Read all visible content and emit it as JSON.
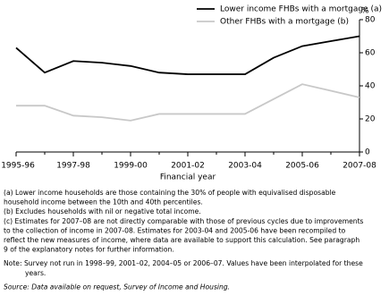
{
  "chart_data": {
    "type": "line",
    "x_label": "Financial year",
    "y_unit": "%",
    "categories": [
      "1995-96",
      null,
      "1997-98",
      null,
      "1999-00",
      null,
      "2001-02",
      null,
      "2003-04",
      null,
      "2005-06",
      null,
      "2007-08"
    ],
    "series": [
      {
        "name": "Lower income FHBs with a mortgage (a)",
        "color": "#000000",
        "values": [
          63,
          48,
          55,
          54,
          52,
          48,
          47,
          47,
          47,
          57,
          64,
          67,
          70
        ]
      },
      {
        "name": "Other FHBs with a mortgage (b)",
        "color": "#c8c8c8",
        "values": [
          28,
          28,
          22,
          21,
          19,
          23,
          23,
          23,
          23,
          32,
          41,
          37,
          33
        ]
      }
    ],
    "ylim": [
      0,
      80
    ],
    "yticks": [
      0,
      20,
      40,
      60,
      80
    ],
    "y_axis_side": "right",
    "legend": "top-center"
  },
  "notes": [
    "(a) Lower income households are those containing the 30% of people with equivalised disposable",
    "household income between the 10th and 40th percentiles.",
    "(b) Excludes households with nil or negative total income.",
    "(c) Estimates for 2007–08 are not directly comparable with those of previous cycles due to improvements",
    "to the collection of income in 2007-08. Estimates for 2003-04 and 2005-06 have been recompiled to",
    "reflect the new measures of income, where data are available to support this calculation. See paragraph",
    "9 of the explanatory notes for further information.",
    "Note: Survey not run in 1998–99, 2001–02, 2004–05 or 2006–07. Values have been interpolated for these",
    "years.",
    "Source: Data available on request, Survey of Income and Housing."
  ]
}
